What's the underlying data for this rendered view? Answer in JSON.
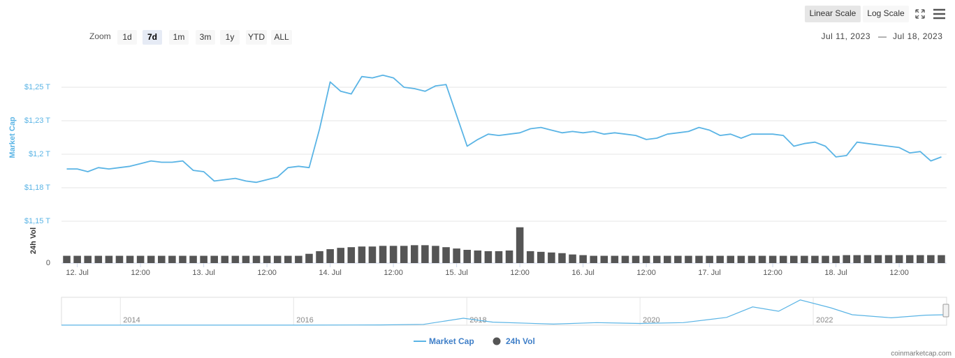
{
  "toolbar": {
    "zoom_label": "Zoom",
    "zoom_buttons": [
      "1d",
      "7d",
      "1m",
      "3m",
      "1y",
      "YTD",
      "ALL"
    ],
    "selected_zoom": "7d",
    "scale_buttons": [
      "Linear Scale",
      "Log Scale"
    ],
    "selected_scale": "Linear Scale",
    "date_from": "Jul 11, 2023",
    "date_separator": "—",
    "date_to": "Jul 18, 2023"
  },
  "credit": "coinmarketcap.com",
  "chart_data": [
    {
      "type": "line",
      "y_title": "Market Cap",
      "y2_title": "24h Vol",
      "categories": [
        null,
        "12. Jul",
        null,
        null,
        null,
        null,
        null,
        "12:00",
        null,
        null,
        null,
        null,
        null,
        "13. Jul",
        null,
        null,
        null,
        null,
        null,
        "12:00",
        null,
        null,
        null,
        null,
        null,
        "14. Jul",
        null,
        null,
        null,
        null,
        null,
        "12:00",
        null,
        null,
        null,
        null,
        null,
        "15. Jul",
        null,
        null,
        null,
        null,
        null,
        "12:00",
        null,
        null,
        null,
        null,
        null,
        "16. Jul",
        null,
        null,
        null,
        null,
        null,
        "12:00",
        null,
        null,
        null,
        null,
        null,
        "17. Jul",
        null,
        null,
        null,
        null,
        null,
        "12:00",
        null,
        null,
        null,
        null,
        null,
        "18. Jul",
        null,
        null,
        null,
        null,
        null,
        "12:00",
        null,
        null,
        null,
        null
      ],
      "series": [
        {
          "name": "Market Cap",
          "type": "line",
          "color": "#5ab4e5",
          "values": [
            1.189,
            1.189,
            1.187,
            1.19,
            1.189,
            1.19,
            1.191,
            1.193,
            1.195,
            1.194,
            1.194,
            1.195,
            1.188,
            1.187,
            1.18,
            1.181,
            1.182,
            1.18,
            1.179,
            1.181,
            1.183,
            1.19,
            1.191,
            1.19,
            1.219,
            1.254,
            1.247,
            1.245,
            1.258,
            1.257,
            1.259,
            1.257,
            1.25,
            1.249,
            1.247,
            1.251,
            1.252,
            1.229,
            1.206,
            1.211,
            1.215,
            1.214,
            1.215,
            1.216,
            1.219,
            1.22,
            1.218,
            1.216,
            1.217,
            1.216,
            1.217,
            1.215,
            1.216,
            1.215,
            1.214,
            1.211,
            1.212,
            1.215,
            1.216,
            1.217,
            1.22,
            1.218,
            1.214,
            1.215,
            1.212,
            1.215,
            1.215,
            1.215,
            1.214,
            1.206,
            1.208,
            1.209,
            1.206,
            1.198,
            1.199,
            1.209,
            1.208,
            1.207,
            1.206,
            1.205,
            1.201,
            1.202,
            1.195,
            1.198
          ]
        },
        {
          "name": "24h Vol",
          "type": "bar",
          "axis": "y2",
          "color": "#555555",
          "values": [
            11,
            11,
            11,
            11,
            11,
            11,
            11,
            11,
            11,
            11,
            11,
            11,
            11,
            11,
            11,
            11,
            11,
            11,
            11,
            11,
            11,
            11,
            11,
            14,
            18,
            21,
            23,
            24,
            25,
            25,
            26,
            26,
            26,
            27,
            27,
            26,
            24,
            22,
            20,
            19,
            18,
            18,
            19,
            54,
            18,
            17,
            16,
            15,
            13,
            12,
            11,
            11,
            11,
            11,
            11,
            11,
            11,
            11,
            11,
            11,
            11,
            11,
            11,
            11,
            11,
            11,
            11,
            11,
            11,
            11,
            11,
            11,
            11,
            11,
            12,
            12,
            12,
            12,
            12,
            12,
            12,
            12,
            12,
            12
          ]
        }
      ],
      "ylim": [
        1.15,
        1.2745
      ],
      "yticks": [
        {
          "value": 1.15,
          "label": "$1,15 T"
        },
        {
          "value": 1.175,
          "label": "$1,18 T"
        },
        {
          "value": 1.2,
          "label": "$1,2 T"
        },
        {
          "value": 1.225,
          "label": "$1,23 T"
        },
        {
          "value": 1.25,
          "label": "$1,25 T"
        }
      ],
      "y2lim": [
        0,
        60
      ],
      "y2ticks": [
        0
      ],
      "grid": true,
      "legend": "bottom"
    },
    {
      "type": "line",
      "color": "#5ab4e5",
      "x": [
        2013.32,
        2014,
        2015,
        2016,
        2017,
        2017.5,
        2017.96,
        2018.3,
        2019,
        2019.5,
        2020,
        2020.5,
        2021,
        2021.3,
        2021.6,
        2021.85,
        2022.2,
        2022.45,
        2022.9,
        2023.3,
        2023.54
      ],
      "values": [
        0.01,
        0.01,
        0.005,
        0.01,
        0.03,
        0.1,
        0.8,
        0.35,
        0.13,
        0.3,
        0.2,
        0.3,
        0.9,
        2.1,
        1.6,
        2.9,
        2.0,
        1.2,
        0.85,
        1.15,
        1.2
      ],
      "xlim": [
        2013.32,
        2023.54
      ],
      "xticks": [
        2014,
        2016,
        2018,
        2020,
        2022
      ],
      "ylim": [
        0,
        3.2
      ]
    }
  ]
}
